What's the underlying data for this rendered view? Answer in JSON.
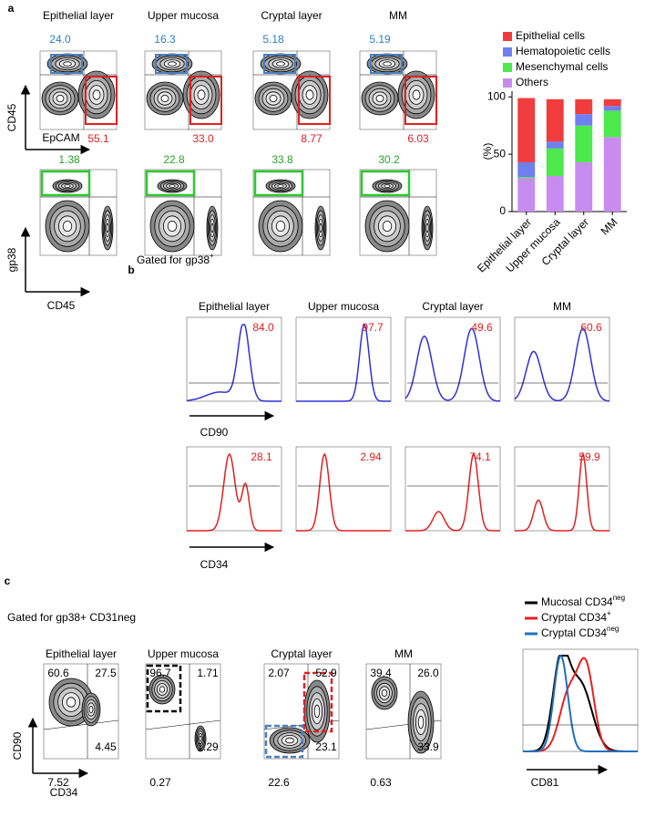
{
  "panel_a": {
    "label": "a",
    "columns": [
      "Epithelial layer",
      "Upper mucosa",
      "Cryptal layer",
      "MM"
    ],
    "row1": {
      "top": [
        "24.0",
        "16.3",
        "5.18",
        "5.19"
      ],
      "bottom": [
        "55.1",
        "33.0",
        "8.77",
        "6.03"
      ],
      "y_axis": "CD45",
      "x_axis": "EpCAM"
    },
    "row2": {
      "top": [
        "1.38",
        "22.8",
        "33.8",
        "30.2"
      ],
      "y_axis": "gp38",
      "x_axis": "CD45"
    }
  },
  "chart_data": {
    "type": "bar",
    "stacked": true,
    "ylabel": "(%)",
    "categories": [
      "Epithelial layer",
      "Upper mucosa",
      "Cryptal layer",
      "MM"
    ],
    "series": [
      {
        "name": "Epithelial cells",
        "color": "#f03c3c",
        "values": [
          56,
          37,
          13,
          6
        ]
      },
      {
        "name": "Hematopoietic cells",
        "color": "#6f7ff0",
        "values": [
          13,
          6,
          10,
          4
        ]
      },
      {
        "name": "Mesenchymal cells",
        "color": "#4ce84c",
        "values": [
          1,
          24,
          32,
          23
        ]
      },
      {
        "name": "Others",
        "color": "#c88cf0",
        "values": [
          29,
          31,
          43,
          65
        ]
      }
    ],
    "ylim": [
      0,
      105
    ],
    "yticks": [
      0,
      50,
      100
    ],
    "legend": "top"
  },
  "panel_b": {
    "label": "b",
    "gate": "Gated for gp38",
    "gate_sup": "+",
    "columns": [
      "Epithelial layer",
      "Upper mucosa",
      "Cryptal layer",
      "MM"
    ],
    "cd90": [
      "84.0",
      "97.7",
      "49.6",
      "60.6"
    ],
    "cd90_label": "CD90",
    "cd34": [
      "28.1",
      "2.94",
      "74.1",
      "59.9"
    ],
    "cd34_label": "CD34"
  },
  "panel_c": {
    "label": "c",
    "gate": "Gated for gp38+ CD31neg",
    "columns": [
      "Epithelial layer",
      "Upper mucosa",
      "Cryptal layer",
      "MM"
    ],
    "quadrants": [
      [
        "60.6",
        "27.5",
        "7.52",
        "4.45"
      ],
      [
        "96.7",
        "1.71",
        "0.27",
        "1.29"
      ],
      [
        "2.07",
        "52.9",
        "22.6",
        "23.1"
      ],
      [
        "39.4",
        "26.0",
        "0.63",
        "33.9"
      ]
    ],
    "y_axis": "CD90",
    "x_axis": "CD34",
    "legend": [
      {
        "name": "Mucosal CD34",
        "sup": "neg",
        "color": "#000000"
      },
      {
        "name": "Cryptal CD34",
        "sup": "+",
        "color": "#e82020"
      },
      {
        "name": "Cryptal CD34",
        "sup": "neg",
        "color": "#2070c0"
      }
    ],
    "hist_x": "CD81"
  }
}
